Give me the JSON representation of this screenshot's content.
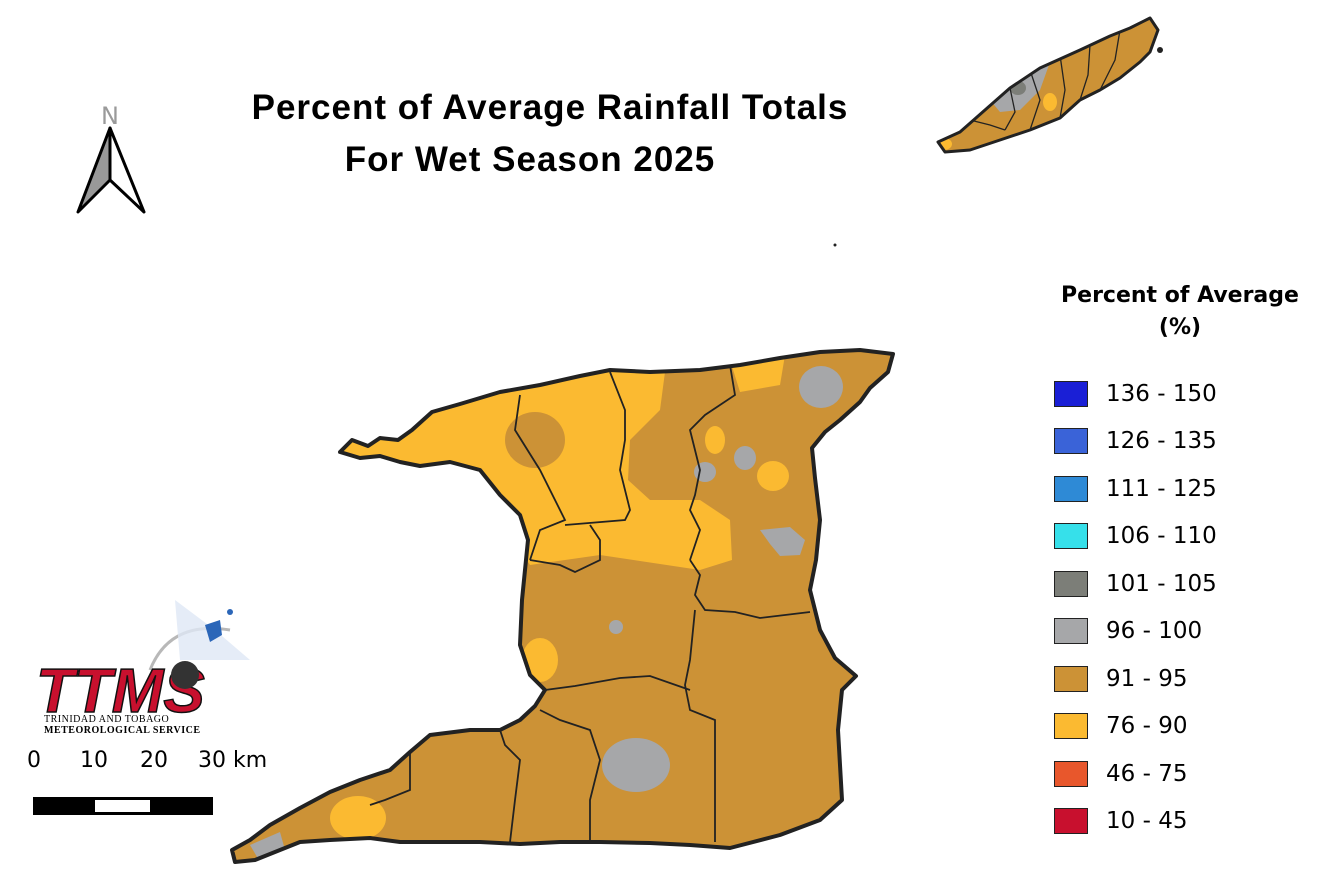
{
  "title": {
    "line1": "Percent of Average Rainfall Totals",
    "line2": "For Wet Season 2025"
  },
  "north_arrow": {
    "label": "N"
  },
  "legend": {
    "title_line1": "Percent of Average",
    "title_line2": "(%)",
    "items": [
      {
        "label": "136 - 150",
        "color": "#1a1fd6"
      },
      {
        "label": "126 - 135",
        "color": "#3a63d8"
      },
      {
        "label": "111 - 125",
        "color": "#2e8ad6"
      },
      {
        "label": "106 - 110",
        "color": "#36e0ea"
      },
      {
        "label": "101 - 105",
        "color": "#7c7e78"
      },
      {
        "label": "96 - 100",
        "color": "#a6a7a9"
      },
      {
        "label": "91 - 95",
        "color": "#cc9236"
      },
      {
        "label": "76 - 90",
        "color": "#fbba31"
      },
      {
        "label": "46 - 75",
        "color": "#e8572c"
      },
      {
        "label": "10 - 45",
        "color": "#c8102e"
      }
    ]
  },
  "scale_bar": {
    "labels": [
      "0",
      "10",
      "20",
      "30 km"
    ]
  },
  "logo": {
    "name": "TTMS",
    "subtitle_line1": "TRINIDAD AND TOBAGO",
    "subtitle_line2": "METEOROLOGICAL SERVICE"
  },
  "map_colors": {
    "base": "#cc9236",
    "light": "#fbba31",
    "gray": "#a6a7a9",
    "dark_gray": "#7c7e78",
    "border": "#222222"
  }
}
